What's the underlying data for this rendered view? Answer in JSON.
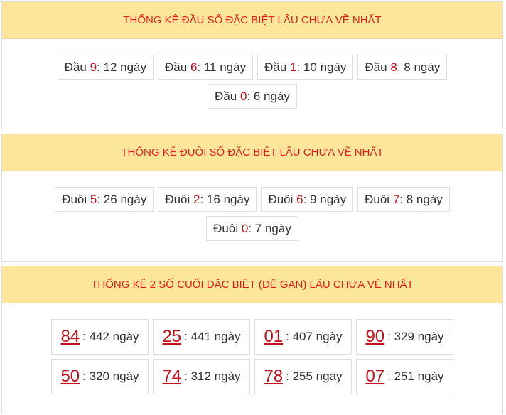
{
  "sections": [
    {
      "title": "THỐNG KÊ ĐẦU SỐ ĐẶC BIỆT LÂU CHƯA VỀ NHẤT",
      "items": [
        {
          "prefix": "Đầu ",
          "num": "9",
          "suffix": ": 12 ngày"
        },
        {
          "prefix": "Đầu ",
          "num": "6",
          "suffix": ": 11 ngày"
        },
        {
          "prefix": "Đầu ",
          "num": "1",
          "suffix": ": 10 ngày"
        },
        {
          "prefix": "Đầu ",
          "num": "8",
          "suffix": ": 8 ngày"
        },
        {
          "prefix": "Đầu ",
          "num": "0",
          "suffix": ": 6 ngày"
        }
      ]
    },
    {
      "title": "THỐNG KÊ ĐUÔI SỐ ĐẶC BIỆT LÂU CHƯA VỀ NHẤT",
      "items": [
        {
          "prefix": "Đuôi ",
          "num": "5",
          "suffix": ": 26 ngày"
        },
        {
          "prefix": "Đuôi ",
          "num": "2",
          "suffix": ": 16 ngày"
        },
        {
          "prefix": "Đuôi ",
          "num": "6",
          "suffix": ": 9 ngày"
        },
        {
          "prefix": "Đuôi ",
          "num": "7",
          "suffix": ": 8 ngày"
        },
        {
          "prefix": "Đuôi ",
          "num": "0",
          "suffix": ": 7 ngày"
        }
      ]
    },
    {
      "title": "THỐNG KÊ 2 SỐ CUỐI ĐẶC BIỆT (ĐỀ GAN) LÂU CHƯA VỀ NHẤT",
      "items": [
        {
          "num": "84",
          "suffix": ": 442 ngày"
        },
        {
          "num": "25",
          "suffix": ": 441 ngày"
        },
        {
          "num": "01",
          "suffix": ": 407 ngày"
        },
        {
          "num": "90",
          "suffix": ": 329 ngày"
        },
        {
          "num": "50",
          "suffix": ": 320 ngày"
        },
        {
          "num": "74",
          "suffix": ": 312 ngày"
        },
        {
          "num": "78",
          "suffix": ": 255 ngày"
        },
        {
          "num": "07",
          "suffix": ": 251 ngày"
        }
      ]
    }
  ]
}
